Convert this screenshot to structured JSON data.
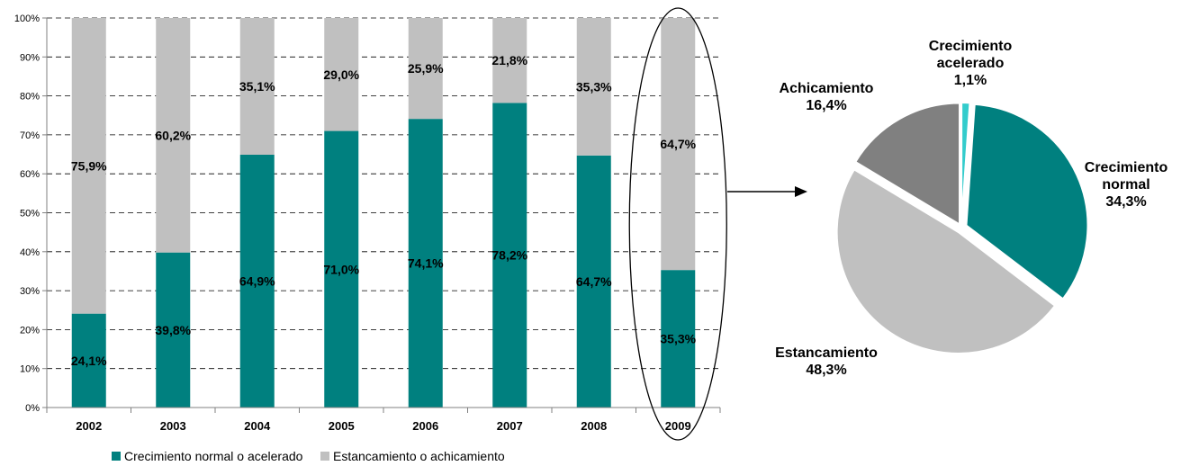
{
  "chart_data": [
    {
      "type": "bar",
      "stacked": true,
      "categories": [
        "2002",
        "2003",
        "2004",
        "2005",
        "2006",
        "2007",
        "2008",
        "2009"
      ],
      "series": [
        {
          "name": "Crecimiento normal o acelerado",
          "values": [
            24.1,
            39.8,
            64.9,
            71.0,
            74.1,
            78.2,
            64.7,
            35.3
          ],
          "labels": [
            "24,1%",
            "39,8%",
            "64,9%",
            "71,0%",
            "74,1%",
            "78,2%",
            "64,7%",
            "35,3%"
          ]
        },
        {
          "name": "Estancamiento o achicamiento",
          "values": [
            75.9,
            60.2,
            35.1,
            29.0,
            25.9,
            21.8,
            35.3,
            64.7
          ],
          "labels": [
            "75,9%",
            "60,2%",
            "35,1%",
            "29,0%",
            "25,9%",
            "21,8%",
            "35,3%",
            "64,7%"
          ]
        }
      ],
      "yticks": [
        "0%",
        "10%",
        "20%",
        "30%",
        "40%",
        "50%",
        "60%",
        "70%",
        "80%",
        "90%",
        "100%"
      ],
      "ylim": [
        0,
        100
      ],
      "grid": "horizontal-dashed",
      "legend": "bottom",
      "highlight_category": "2009"
    },
    {
      "type": "pie",
      "slices": [
        {
          "label_lines": [
            "Crecimiento",
            "acelerado",
            "1,1%"
          ],
          "value": 1.1
        },
        {
          "label_lines": [
            "Crecimiento",
            "normal",
            "34,3%"
          ],
          "value": 34.3
        },
        {
          "label_lines": [
            "Estancamiento",
            "48,3%"
          ],
          "value": 48.3
        },
        {
          "label_lines": [
            "Achicamiento",
            "16,4%"
          ],
          "value": 16.4
        }
      ]
    }
  ],
  "colors": {
    "normal": "#00807f",
    "stagnant": "#c0c0c0",
    "accelerated": "#33cccc",
    "shrink": "#808080",
    "axis": "#808080",
    "grid": "#000000"
  }
}
